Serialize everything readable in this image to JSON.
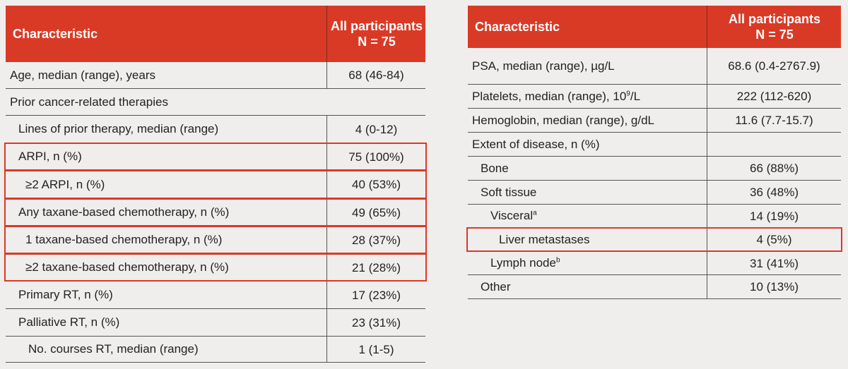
{
  "left_table": {
    "header": {
      "characteristic": "Characteristic",
      "group": "All participants",
      "n": "N = 75"
    },
    "rows": [
      {
        "label": "Age, median (range), years",
        "value": "68 (46-84)"
      },
      {
        "label": "Prior cancer-related therapies"
      },
      {
        "label": "Lines of prior therapy, median (range)",
        "value": "4 (0-12)"
      },
      {
        "label": "ARPI, n (%)",
        "value": "75 (100%)"
      },
      {
        "label": "≥2 ARPI, n (%)",
        "value": "40 (53%)"
      },
      {
        "label": "Any taxane-based chemotherapy, n (%)",
        "value": "49 (65%)"
      },
      {
        "label": "1 taxane-based chemotherapy, n (%)",
        "value": "28 (37%)"
      },
      {
        "label": "≥2 taxane-based chemotherapy, n (%)",
        "value": "21 (28%)"
      },
      {
        "label": "Primary RT, n (%)",
        "value": "17 (23%)"
      },
      {
        "label": "Palliative RT, n (%)",
        "value": "23 (31%)"
      },
      {
        "label": "No. courses RT, median (range)",
        "value": "1 (1-5)"
      }
    ]
  },
  "right_table": {
    "header": {
      "characteristic": "Characteristic",
      "group": "All participants",
      "n": "N = 75"
    },
    "rows": [
      {
        "label": "PSA, median (range), µg/L",
        "value": "68.6 (0.4-2767.9)"
      },
      {
        "label": "Platelets, median (range), 10",
        "sup": "9",
        "label_suffix": "/L",
        "value": "222 (112-620)"
      },
      {
        "label": "Hemoglobin, median (range), g/dL",
        "value": "11.6 (7.7-15.7)"
      },
      {
        "label": "Extent of disease, n (%)"
      },
      {
        "label": "Bone",
        "value": "66 (88%)"
      },
      {
        "label": "Soft tissue",
        "value": "36 (48%)"
      },
      {
        "label": "Visceral",
        "sup": "a",
        "value": "14 (19%)"
      },
      {
        "label": "Liver metastases",
        "value": "4 (5%)"
      },
      {
        "label": "Lymph node",
        "sup": "b",
        "value": "31 (41%)"
      },
      {
        "label": "Other",
        "value": "10 (13%)"
      }
    ]
  }
}
